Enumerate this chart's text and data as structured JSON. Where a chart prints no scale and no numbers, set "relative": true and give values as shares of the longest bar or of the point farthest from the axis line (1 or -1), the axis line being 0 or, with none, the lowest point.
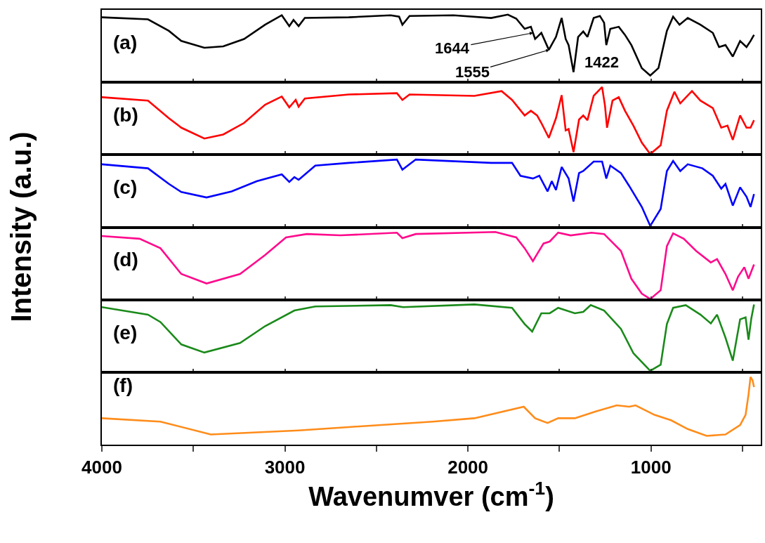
{
  "chart_data": [
    {
      "type": "line",
      "relative": true,
      "color": "#000000",
      "tick_labels": false,
      "xlim": [
        4000,
        400
      ],
      "xticks": [
        4000,
        {
          "value": 3500,
          "label": null
        },
        3000,
        {
          "value": 2500,
          "label": null
        },
        2000,
        {
          "value": 1500,
          "label": null
        },
        1000,
        {
          "value": 500,
          "label": null
        }
      ],
      "ylabel": "Intensity (a.u.)",
      "annotations": [
        "(a)",
        {
          "text": "1644",
          "x": 1644,
          "y": 0.73
        },
        {
          "text": "1555",
          "x": 1555,
          "y": 0.48
        },
        {
          "text": "1422",
          "x": 1422,
          "y": 0.15
        }
      ],
      "x": [
        4000,
        3748,
        3634,
        3566,
        3440,
        3337,
        3223,
        3108,
        3017,
        2976,
        2953,
        2925,
        2891,
        2651,
        2422,
        2376,
        2358,
        2319,
        2079,
        1873,
        1782,
        1736,
        1690,
        1656,
        1633,
        1599,
        1558,
        1519,
        1488,
        1466,
        1450,
        1423,
        1398,
        1370,
        1347,
        1313,
        1279,
        1256,
        1244,
        1222,
        1176,
        1142,
        1107,
        1050,
        1004,
        959,
        913,
        879,
        844,
        799,
        730,
        662,
        628,
        593,
        553,
        513,
        478,
        456,
        437
      ],
      "values": [
        0.96,
        0.93,
        0.76,
        0.61,
        0.51,
        0.53,
        0.64,
        0.85,
        0.99,
        0.83,
        0.92,
        0.83,
        0.95,
        0.96,
        0.99,
        0.97,
        0.85,
        0.98,
        0.99,
        0.95,
        1.0,
        0.94,
        0.79,
        0.82,
        0.64,
        0.73,
        0.48,
        0.67,
        0.95,
        0.64,
        0.55,
        0.15,
        0.67,
        0.75,
        0.67,
        0.95,
        0.98,
        0.88,
        0.55,
        0.79,
        0.82,
        0.7,
        0.55,
        0.21,
        0.1,
        0.21,
        0.76,
        0.97,
        0.85,
        0.95,
        0.85,
        0.73,
        0.52,
        0.55,
        0.38,
        0.61,
        0.52,
        0.61,
        0.7
      ]
    },
    {
      "type": "line",
      "relative": true,
      "color": "#ff0000",
      "tick_labels": false,
      "xlim": [
        4000,
        400
      ],
      "xticks": [
        4000,
        {
          "value": 3500,
          "label": null
        },
        3000,
        {
          "value": 2500,
          "label": null
        },
        2000,
        {
          "value": 1500,
          "label": null
        },
        1000,
        {
          "value": 500,
          "label": null
        }
      ],
      "annotations": [
        "(b)"
      ],
      "x": [
        4000,
        3748,
        3634,
        3566,
        3440,
        3337,
        3223,
        3108,
        3017,
        2976,
        2941,
        2925,
        2891,
        2651,
        2388,
        2358,
        2319,
        1965,
        1816,
        1759,
        1690,
        1656,
        1622,
        1599,
        1558,
        1519,
        1488,
        1466,
        1450,
        1423,
        1393,
        1370,
        1347,
        1313,
        1267,
        1251,
        1240,
        1210,
        1176,
        1142,
        1096,
        1050,
        1004,
        947,
        913,
        872,
        840,
        776,
        730,
        662,
        616,
        582,
        553,
        513,
        478,
        456,
        437
      ],
      "values": [
        0.85,
        0.8,
        0.54,
        0.4,
        0.24,
        0.3,
        0.47,
        0.74,
        0.86,
        0.7,
        0.81,
        0.71,
        0.83,
        0.89,
        0.91,
        0.81,
        0.89,
        0.87,
        0.94,
        0.81,
        0.58,
        0.65,
        0.58,
        0.47,
        0.25,
        0.54,
        0.88,
        0.36,
        0.38,
        0.04,
        0.52,
        0.58,
        0.51,
        0.87,
        1.0,
        0.72,
        0.4,
        0.8,
        0.85,
        0.65,
        0.43,
        0.18,
        0.01,
        0.14,
        0.65,
        0.93,
        0.76,
        0.94,
        0.8,
        0.69,
        0.4,
        0.43,
        0.22,
        0.58,
        0.4,
        0.4,
        0.51
      ]
    },
    {
      "type": "line",
      "relative": true,
      "color": "#0000ff",
      "tick_labels": false,
      "xlim": [
        4000,
        400
      ],
      "xticks": [
        4000,
        {
          "value": 3500,
          "label": null
        },
        3000,
        {
          "value": 2500,
          "label": null
        },
        2000,
        {
          "value": 1500,
          "label": null
        },
        1000,
        {
          "value": 500,
          "label": null
        }
      ],
      "annotations": [
        "(c)"
      ],
      "x": [
        4000,
        3748,
        3634,
        3566,
        3428,
        3291,
        3154,
        3017,
        2976,
        2948,
        2925,
        2834,
        2651,
        2388,
        2358,
        2285,
        1873,
        1759,
        1713,
        1645,
        1610,
        1565,
        1542,
        1519,
        1488,
        1450,
        1423,
        1393,
        1370,
        1313,
        1267,
        1244,
        1222,
        1164,
        1119,
        1050,
        1004,
        947,
        913,
        879,
        840,
        799,
        719,
        662,
        616,
        593,
        553,
        513,
        478,
        456,
        437
      ],
      "values": [
        0.93,
        0.87,
        0.64,
        0.52,
        0.44,
        0.53,
        0.68,
        0.78,
        0.67,
        0.74,
        0.7,
        0.91,
        0.95,
        1.0,
        0.85,
        1.0,
        0.95,
        0.95,
        0.76,
        0.72,
        0.76,
        0.53,
        0.68,
        0.55,
        0.89,
        0.72,
        0.38,
        0.8,
        0.83,
        0.97,
        0.97,
        0.72,
        0.91,
        0.8,
        0.61,
        0.3,
        0.02,
        0.27,
        0.83,
        0.98,
        0.83,
        0.93,
        0.87,
        0.76,
        0.57,
        0.64,
        0.32,
        0.59,
        0.45,
        0.3,
        0.49
      ]
    },
    {
      "type": "line",
      "relative": true,
      "color": "#ff0a8c",
      "tick_labels": false,
      "xlim": [
        4000,
        400
      ],
      "xticks": [
        4000,
        {
          "value": 3500,
          "label": null
        },
        3000,
        {
          "value": 2500,
          "label": null
        },
        2000,
        {
          "value": 1500,
          "label": null
        },
        1000,
        {
          "value": 500,
          "label": null
        }
      ],
      "annotations": [
        "(d)"
      ],
      "x": [
        4000,
        3794,
        3680,
        3566,
        3428,
        3245,
        3108,
        2994,
        2880,
        2697,
        2388,
        2358,
        2285,
        1850,
        1736,
        1690,
        1645,
        1587,
        1553,
        1507,
        1439,
        1325,
        1256,
        1164,
        1107,
        1050,
        1004,
        947,
        913,
        879,
        821,
        753,
        673,
        639,
        593,
        553,
        524,
        490,
        467,
        437
      ],
      "values": [
        0.94,
        0.9,
        0.76,
        0.38,
        0.24,
        0.38,
        0.66,
        0.92,
        0.97,
        0.95,
        0.99,
        0.91,
        0.97,
        1.0,
        0.92,
        0.76,
        0.57,
        0.83,
        0.86,
        0.99,
        0.95,
        0.99,
        0.97,
        0.72,
        0.31,
        0.09,
        0.01,
        0.14,
        0.79,
        0.98,
        0.9,
        0.72,
        0.55,
        0.6,
        0.38,
        0.14,
        0.34,
        0.48,
        0.31,
        0.52
      ]
    },
    {
      "type": "line",
      "relative": true,
      "color": "#1a8a1a",
      "tick_labels": false,
      "xlim": [
        4000,
        400
      ],
      "xticks": [
        4000,
        {
          "value": 3500,
          "label": null
        },
        3000,
        {
          "value": 2500,
          "label": null
        },
        2000,
        {
          "value": 1500,
          "label": null
        },
        1000,
        {
          "value": 500,
          "label": null
        }
      ],
      "annotations": [
        "(e)"
      ],
      "x": [
        4000,
        3748,
        3680,
        3566,
        3440,
        3245,
        3108,
        2948,
        2834,
        2422,
        2354,
        1965,
        1759,
        1690,
        1649,
        1599,
        1553,
        1507,
        1416,
        1370,
        1329,
        1256,
        1164,
        1096,
        1004,
        947,
        913,
        879,
        810,
        730,
        673,
        639,
        593,
        553,
        513,
        483,
        467,
        452,
        437
      ],
      "values": [
        0.96,
        0.85,
        0.74,
        0.41,
        0.29,
        0.43,
        0.68,
        0.91,
        0.97,
        0.99,
        0.96,
        1.0,
        0.95,
        0.71,
        0.6,
        0.87,
        0.87,
        0.95,
        0.87,
        0.89,
        0.99,
        0.91,
        0.64,
        0.28,
        0.02,
        0.11,
        0.71,
        0.95,
        0.99,
        0.85,
        0.72,
        0.85,
        0.51,
        0.17,
        0.78,
        0.81,
        0.48,
        0.79,
        1.0
      ]
    },
    {
      "type": "line",
      "relative": true,
      "color": "#ff8c1a",
      "tick_labels": "x",
      "xlim": [
        4000,
        400
      ],
      "xticks": [
        4000,
        {
          "value": 3500,
          "label": null
        },
        3000,
        {
          "value": 2500,
          "label": null
        },
        2000,
        {
          "value": 1500,
          "label": null
        },
        1000,
        {
          "value": 500,
          "label": null
        }
      ],
      "xlabel": "Wavenumver (cm$^{-1}$)",
      "annotations": [
        "(f)"
      ],
      "x": [
        4000,
        3680,
        3405,
        2925,
        2651,
        2193,
        1965,
        1695,
        1633,
        1565,
        1507,
        1416,
        1302,
        1187,
        1119,
        1084,
        981,
        890,
        799,
        696,
        593,
        513,
        483,
        467,
        456,
        445,
        437
      ],
      "values": [
        0.39,
        0.34,
        0.15,
        0.21,
        0.26,
        0.34,
        0.39,
        0.56,
        0.39,
        0.32,
        0.39,
        0.39,
        0.49,
        0.58,
        0.56,
        0.58,
        0.44,
        0.36,
        0.23,
        0.13,
        0.15,
        0.29,
        0.44,
        0.74,
        1.0,
        0.95,
        0.85
      ]
    }
  ]
}
